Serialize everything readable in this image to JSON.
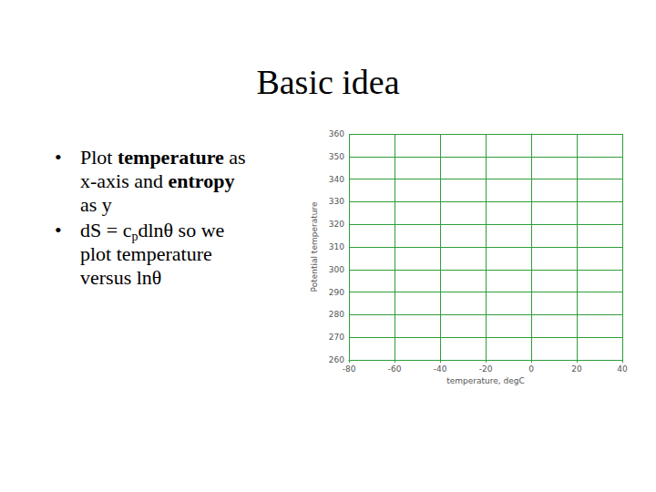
{
  "slide": {
    "title": "Basic idea",
    "bullets": [
      [
        {
          "text": "Plot "
        },
        {
          "text": "temperature",
          "bold": true
        },
        {
          "text": " as x-axis and "
        },
        {
          "text": "entropy",
          "bold": true
        },
        {
          "text": " as y"
        }
      ],
      [
        {
          "text": "dS = c"
        },
        {
          "text": "p",
          "sub": true
        },
        {
          "text": "dlnθ so we plot temperature versus lnθ"
        }
      ]
    ]
  },
  "chart_data": {
    "type": "line",
    "xlabel": "temperature, degC",
    "ylabel": "Potential temperature",
    "series": [],
    "xlim": [
      -80,
      40
    ],
    "xticks": [
      -80,
      -60,
      -40,
      -20,
      0,
      20,
      40
    ],
    "ylim": [
      260,
      360
    ],
    "yticks": [
      260,
      270,
      280,
      290,
      300,
      310,
      320,
      330,
      340,
      350,
      360
    ],
    "grid": true,
    "color": "#2e9e3a"
  }
}
